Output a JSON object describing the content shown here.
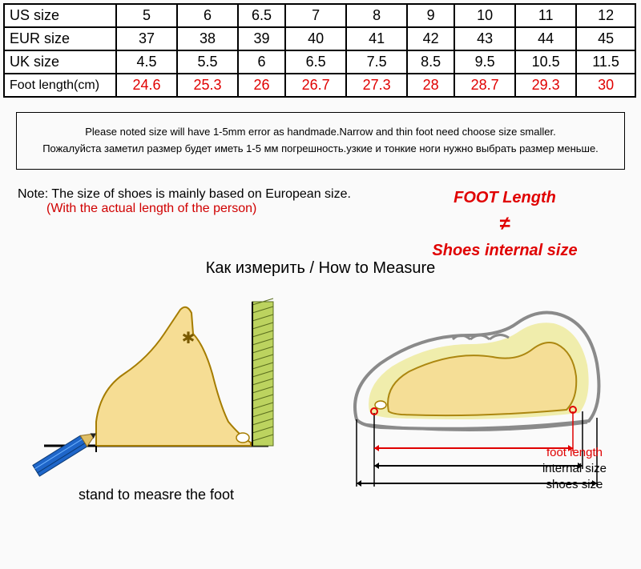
{
  "table": {
    "rows": [
      {
        "label": "US size",
        "cells": [
          "5",
          "6",
          "6.5",
          "7",
          "8",
          "9",
          "10",
          "11",
          "12"
        ],
        "highlight": false
      },
      {
        "label": "EUR size",
        "cells": [
          "37",
          "38",
          "39",
          "40",
          "41",
          "42",
          "43",
          "44",
          "45"
        ],
        "highlight": false
      },
      {
        "label": "UK size",
        "cells": [
          "4.5",
          "5.5",
          "6",
          "6.5",
          "7.5",
          "8.5",
          "9.5",
          "10.5",
          "11.5"
        ],
        "highlight": false
      },
      {
        "label": "Foot length(cm)",
        "cells": [
          "24.6",
          "25.3",
          "26",
          "26.7",
          "27.3",
          "28",
          "28.7",
          "29.3",
          "30"
        ],
        "highlight": true
      }
    ],
    "label_col_width_pct": 18
  },
  "notice": {
    "line_en": "Please noted size will have 1-5mm error as handmade.Narrow and thin foot need choose size smaller.",
    "line_ru": "Пожалуйста заметил размер будет иметь 1-5 мм погрешность.узкие и тонкие ноги нужно выбрать размер меньше."
  },
  "note": {
    "line1": "Note: The size of shoes is mainly based on European size.",
    "line2": "(With the actual length of the person)"
  },
  "foot_warning": {
    "top": "FOOT Length",
    "symbol": "≠",
    "bottom": "Shoes internal size",
    "color": "#e00000"
  },
  "measure_title": "Как измерить / How to Measure",
  "left_diagram": {
    "caption": "stand to measre the foot",
    "foot_fill": "#f6dd94",
    "foot_stroke": "#a57c00",
    "nail_fill": "#ffffff",
    "floor_color": "#000000",
    "wall_fill": "#bcd35f",
    "wall_hatch": "#5a6e1e",
    "pencil_body": "#1f66c9",
    "pencil_tip": "#e0c068",
    "pencil_lead": "#222222",
    "ankle_mark": "#7a5a00"
  },
  "right_diagram": {
    "shoe_outline": "#8a8a8a",
    "shoe_highlight": "#e7e16b",
    "foot_fill": "#f6dd94",
    "foot_stroke": "#a57c00",
    "foot_length_color": "#e00000",
    "internal_size_color": "#000000",
    "shoes_size_color": "#000000",
    "labels": {
      "foot_length": "foot length",
      "internal_size": "internal size",
      "shoes_size": "shoes size"
    }
  }
}
